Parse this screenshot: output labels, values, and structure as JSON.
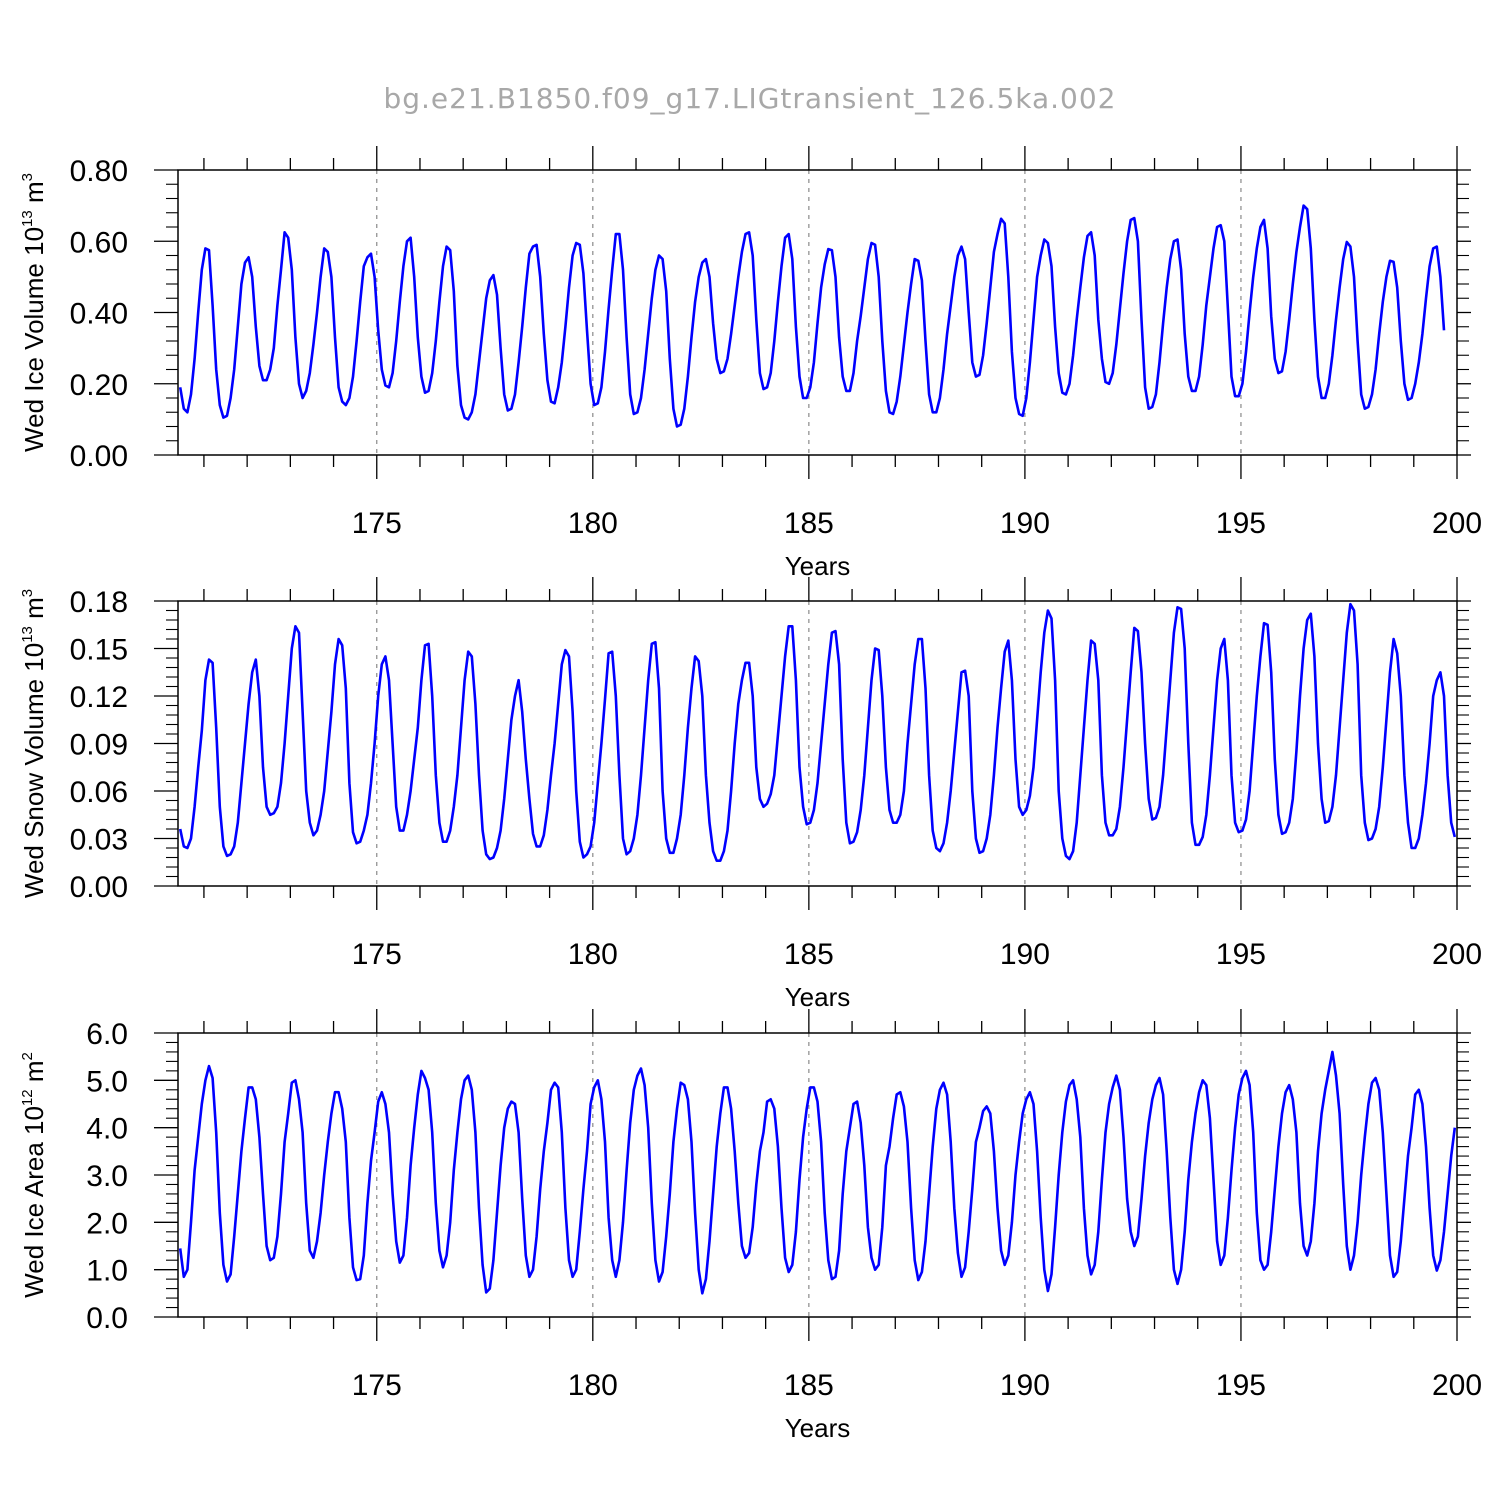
{
  "figure": {
    "title": "bg.e21.B1850.f09_g17.LIGtransient_126.5ka.002"
  },
  "chart_data": [
    {
      "type": "line",
      "name": "wed-ice-volume",
      "ylabel": {
        "main": "Wed Ice Volume 10",
        "exp": "13",
        "unit": " m",
        "unit_exp": "3"
      },
      "xlabel": "Years",
      "xlim": [
        170.4,
        200
      ],
      "ylim": [
        0,
        0.8
      ],
      "xticks": [
        175,
        180,
        185,
        190,
        195,
        200
      ],
      "xtick_labels": [
        "175",
        "180",
        "185",
        "190",
        "195",
        "200"
      ],
      "yticks": [
        0,
        0.2,
        0.4,
        0.6,
        0.8
      ],
      "ytick_labels": [
        "0.00",
        "0.20",
        "0.40",
        "0.60",
        "0.80"
      ],
      "x_start": 170.45,
      "x_step": 0.08333,
      "line_color": "#0000ff",
      "values": [
        0.19,
        0.13,
        0.12,
        0.17,
        0.27,
        0.4,
        0.52,
        0.58,
        0.575,
        0.42,
        0.24,
        0.14,
        0.105,
        0.11,
        0.16,
        0.24,
        0.36,
        0.48,
        0.54,
        0.555,
        0.5,
        0.36,
        0.25,
        0.21,
        0.21,
        0.24,
        0.3,
        0.42,
        0.52,
        0.625,
        0.61,
        0.52,
        0.33,
        0.2,
        0.16,
        0.18,
        0.23,
        0.31,
        0.4,
        0.5,
        0.58,
        0.57,
        0.5,
        0.33,
        0.19,
        0.15,
        0.14,
        0.16,
        0.22,
        0.32,
        0.43,
        0.53,
        0.555,
        0.565,
        0.5,
        0.35,
        0.24,
        0.195,
        0.19,
        0.23,
        0.32,
        0.43,
        0.53,
        0.6,
        0.61,
        0.5,
        0.33,
        0.22,
        0.175,
        0.18,
        0.23,
        0.32,
        0.43,
        0.53,
        0.585,
        0.575,
        0.46,
        0.25,
        0.14,
        0.105,
        0.1,
        0.12,
        0.17,
        0.26,
        0.35,
        0.44,
        0.49,
        0.505,
        0.45,
        0.3,
        0.17,
        0.125,
        0.13,
        0.17,
        0.26,
        0.36,
        0.47,
        0.565,
        0.585,
        0.59,
        0.5,
        0.34,
        0.21,
        0.15,
        0.145,
        0.19,
        0.26,
        0.36,
        0.47,
        0.56,
        0.595,
        0.59,
        0.51,
        0.35,
        0.2,
        0.14,
        0.145,
        0.19,
        0.29,
        0.41,
        0.52,
        0.62,
        0.62,
        0.52,
        0.33,
        0.17,
        0.115,
        0.12,
        0.16,
        0.24,
        0.34,
        0.44,
        0.52,
        0.56,
        0.55,
        0.46,
        0.27,
        0.13,
        0.08,
        0.085,
        0.13,
        0.22,
        0.33,
        0.43,
        0.5,
        0.54,
        0.55,
        0.5,
        0.37,
        0.27,
        0.23,
        0.235,
        0.27,
        0.34,
        0.42,
        0.5,
        0.57,
        0.62,
        0.625,
        0.56,
        0.38,
        0.23,
        0.185,
        0.19,
        0.23,
        0.32,
        0.43,
        0.53,
        0.61,
        0.62,
        0.55,
        0.36,
        0.22,
        0.16,
        0.16,
        0.19,
        0.26,
        0.37,
        0.47,
        0.535,
        0.578,
        0.575,
        0.5,
        0.33,
        0.22,
        0.18,
        0.18,
        0.23,
        0.32,
        0.39,
        0.47,
        0.55,
        0.595,
        0.59,
        0.5,
        0.32,
        0.18,
        0.12,
        0.115,
        0.15,
        0.22,
        0.31,
        0.4,
        0.48,
        0.55,
        0.545,
        0.49,
        0.32,
        0.17,
        0.12,
        0.12,
        0.16,
        0.24,
        0.34,
        0.42,
        0.5,
        0.56,
        0.585,
        0.55,
        0.4,
        0.26,
        0.22,
        0.225,
        0.28,
        0.37,
        0.47,
        0.57,
        0.62,
        0.663,
        0.65,
        0.5,
        0.29,
        0.16,
        0.115,
        0.11,
        0.16,
        0.26,
        0.38,
        0.5,
        0.56,
        0.605,
        0.595,
        0.53,
        0.36,
        0.23,
        0.175,
        0.17,
        0.2,
        0.28,
        0.38,
        0.47,
        0.555,
        0.615,
        0.625,
        0.56,
        0.38,
        0.27,
        0.205,
        0.2,
        0.23,
        0.31,
        0.41,
        0.51,
        0.6,
        0.66,
        0.665,
        0.6,
        0.38,
        0.19,
        0.13,
        0.135,
        0.17,
        0.26,
        0.37,
        0.47,
        0.55,
        0.6,
        0.605,
        0.52,
        0.34,
        0.22,
        0.18,
        0.18,
        0.22,
        0.31,
        0.42,
        0.5,
        0.58,
        0.64,
        0.645,
        0.6,
        0.41,
        0.22,
        0.165,
        0.165,
        0.2,
        0.29,
        0.4,
        0.5,
        0.58,
        0.64,
        0.66,
        0.58,
        0.39,
        0.27,
        0.23,
        0.235,
        0.29,
        0.38,
        0.48,
        0.57,
        0.64,
        0.7,
        0.69,
        0.58,
        0.38,
        0.22,
        0.16,
        0.16,
        0.2,
        0.28,
        0.38,
        0.47,
        0.55,
        0.598,
        0.585,
        0.5,
        0.32,
        0.17,
        0.13,
        0.135,
        0.17,
        0.24,
        0.34,
        0.43,
        0.5,
        0.545,
        0.542,
        0.47,
        0.32,
        0.2,
        0.155,
        0.16,
        0.2,
        0.26,
        0.34,
        0.44,
        0.53,
        0.58,
        0.585,
        0.5,
        0.35
      ]
    },
    {
      "type": "line",
      "name": "wed-snow-volume",
      "ylabel": {
        "main": "Wed Snow Volume 10",
        "exp": "13",
        "unit": " m",
        "unit_exp": "3"
      },
      "xlabel": "Years",
      "xlim": [
        170.4,
        200
      ],
      "ylim": [
        0,
        0.18
      ],
      "xticks": [
        175,
        180,
        185,
        190,
        195,
        200
      ],
      "xtick_labels": [
        "175",
        "180",
        "185",
        "190",
        "195",
        "200"
      ],
      "yticks": [
        0,
        0.03,
        0.06,
        0.09,
        0.12,
        0.15,
        0.18
      ],
      "ytick_labels": [
        "0.00",
        "0.03",
        "0.06",
        "0.09",
        "0.12",
        "0.15",
        "0.18"
      ],
      "x_start": 170.45,
      "x_step": 0.08333,
      "line_color": "#0000ff",
      "values": [
        0.036,
        0.025,
        0.024,
        0.03,
        0.05,
        0.075,
        0.098,
        0.13,
        0.143,
        0.141,
        0.1,
        0.05,
        0.025,
        0.019,
        0.02,
        0.025,
        0.04,
        0.065,
        0.09,
        0.115,
        0.135,
        0.143,
        0.12,
        0.075,
        0.05,
        0.045,
        0.046,
        0.05,
        0.065,
        0.09,
        0.12,
        0.15,
        0.164,
        0.16,
        0.11,
        0.06,
        0.04,
        0.032,
        0.035,
        0.045,
        0.06,
        0.085,
        0.11,
        0.14,
        0.156,
        0.152,
        0.125,
        0.065,
        0.034,
        0.027,
        0.028,
        0.035,
        0.045,
        0.065,
        0.09,
        0.12,
        0.14,
        0.145,
        0.13,
        0.09,
        0.05,
        0.035,
        0.035,
        0.045,
        0.06,
        0.08,
        0.1,
        0.13,
        0.152,
        0.153,
        0.12,
        0.07,
        0.04,
        0.028,
        0.028,
        0.035,
        0.05,
        0.07,
        0.1,
        0.13,
        0.148,
        0.145,
        0.115,
        0.07,
        0.035,
        0.02,
        0.017,
        0.018,
        0.024,
        0.035,
        0.055,
        0.08,
        0.105,
        0.12,
        0.13,
        0.11,
        0.08,
        0.055,
        0.033,
        0.025,
        0.025,
        0.032,
        0.048,
        0.07,
        0.09,
        0.115,
        0.14,
        0.149,
        0.145,
        0.11,
        0.06,
        0.028,
        0.018,
        0.02,
        0.025,
        0.04,
        0.065,
        0.09,
        0.118,
        0.147,
        0.148,
        0.12,
        0.07,
        0.03,
        0.02,
        0.022,
        0.03,
        0.045,
        0.07,
        0.1,
        0.13,
        0.153,
        0.154,
        0.125,
        0.06,
        0.03,
        0.021,
        0.021,
        0.03,
        0.045,
        0.07,
        0.1,
        0.125,
        0.145,
        0.142,
        0.12,
        0.07,
        0.04,
        0.022,
        0.016,
        0.016,
        0.022,
        0.035,
        0.06,
        0.09,
        0.115,
        0.13,
        0.141,
        0.141,
        0.12,
        0.075,
        0.055,
        0.05,
        0.052,
        0.058,
        0.07,
        0.095,
        0.12,
        0.145,
        0.164,
        0.164,
        0.13,
        0.075,
        0.05,
        0.039,
        0.04,
        0.048,
        0.065,
        0.09,
        0.115,
        0.14,
        0.16,
        0.161,
        0.14,
        0.08,
        0.04,
        0.027,
        0.028,
        0.034,
        0.048,
        0.07,
        0.1,
        0.13,
        0.15,
        0.149,
        0.12,
        0.075,
        0.048,
        0.04,
        0.04,
        0.045,
        0.06,
        0.09,
        0.115,
        0.14,
        0.156,
        0.156,
        0.125,
        0.07,
        0.035,
        0.024,
        0.022,
        0.027,
        0.04,
        0.06,
        0.085,
        0.11,
        0.135,
        0.136,
        0.12,
        0.06,
        0.03,
        0.021,
        0.022,
        0.03,
        0.045,
        0.07,
        0.1,
        0.125,
        0.148,
        0.155,
        0.13,
        0.08,
        0.05,
        0.045,
        0.048,
        0.057,
        0.075,
        0.105,
        0.135,
        0.16,
        0.174,
        0.169,
        0.13,
        0.06,
        0.03,
        0.019,
        0.017,
        0.022,
        0.04,
        0.07,
        0.1,
        0.13,
        0.155,
        0.153,
        0.13,
        0.07,
        0.04,
        0.032,
        0.032,
        0.036,
        0.05,
        0.075,
        0.105,
        0.135,
        0.163,
        0.161,
        0.135,
        0.09,
        0.055,
        0.042,
        0.043,
        0.05,
        0.07,
        0.1,
        0.13,
        0.16,
        0.176,
        0.175,
        0.15,
        0.09,
        0.04,
        0.026,
        0.026,
        0.031,
        0.045,
        0.07,
        0.1,
        0.13,
        0.15,
        0.156,
        0.13,
        0.07,
        0.04,
        0.034,
        0.035,
        0.042,
        0.06,
        0.09,
        0.12,
        0.145,
        0.166,
        0.165,
        0.135,
        0.08,
        0.045,
        0.033,
        0.034,
        0.04,
        0.055,
        0.085,
        0.12,
        0.15,
        0.168,
        0.172,
        0.145,
        0.09,
        0.055,
        0.04,
        0.041,
        0.05,
        0.07,
        0.1,
        0.13,
        0.16,
        0.178,
        0.174,
        0.14,
        0.07,
        0.04,
        0.029,
        0.03,
        0.036,
        0.05,
        0.075,
        0.105,
        0.135,
        0.156,
        0.147,
        0.12,
        0.07,
        0.04,
        0.024,
        0.024,
        0.03,
        0.045,
        0.065,
        0.09,
        0.12,
        0.13,
        0.135,
        0.12,
        0.07,
        0.04,
        0.031,
        0.032,
        0.04,
        0.055,
        0.08,
        0.105,
        0.13,
        0.15,
        0.153,
        0.13,
        0.07
      ]
    },
    {
      "type": "line",
      "name": "wed-ice-area",
      "ylabel": {
        "main": "Wed Ice Area 10",
        "exp": "12",
        "unit": " m",
        "unit_exp": "2"
      },
      "xlabel": "Years",
      "xlim": [
        170.4,
        200
      ],
      "ylim": [
        0,
        6
      ],
      "xticks": [
        175,
        180,
        185,
        190,
        195,
        200
      ],
      "xtick_labels": [
        "175",
        "180",
        "185",
        "190",
        "195",
        "200"
      ],
      "yticks": [
        0,
        1,
        2,
        3,
        4,
        5,
        6
      ],
      "ytick_labels": [
        "0.0",
        "1.0",
        "2.0",
        "3.0",
        "4.0",
        "5.0",
        "6.0"
      ],
      "x_start": 170.45,
      "x_step": 0.08333,
      "line_color": "#0000ff",
      "values": [
        1.45,
        0.85,
        1.0,
        2.0,
        3.1,
        3.8,
        4.5,
        5.0,
        5.3,
        5.05,
        3.9,
        2.2,
        1.1,
        0.75,
        0.9,
        1.7,
        2.6,
        3.5,
        4.2,
        4.85,
        4.85,
        4.6,
        3.8,
        2.6,
        1.5,
        1.2,
        1.25,
        1.7,
        2.6,
        3.7,
        4.3,
        4.95,
        5.0,
        4.6,
        3.9,
        2.4,
        1.4,
        1.25,
        1.6,
        2.2,
        3.0,
        3.7,
        4.3,
        4.75,
        4.75,
        4.4,
        3.7,
        2.1,
        1.05,
        0.78,
        0.8,
        1.3,
        2.4,
        3.3,
        3.9,
        4.55,
        4.75,
        4.5,
        3.9,
        2.6,
        1.6,
        1.15,
        1.3,
        2.1,
        3.2,
        4.0,
        4.7,
        5.2,
        5.05,
        4.8,
        3.9,
        2.4,
        1.4,
        1.05,
        1.3,
        2.0,
        3.1,
        3.9,
        4.6,
        5.0,
        5.1,
        4.8,
        3.9,
        2.3,
        1.1,
        0.52,
        0.6,
        1.2,
        2.2,
        3.2,
        4.0,
        4.4,
        4.55,
        4.5,
        3.9,
        2.5,
        1.3,
        0.85,
        1.0,
        1.7,
        2.7,
        3.5,
        4.1,
        4.8,
        4.95,
        4.85,
        3.9,
        2.3,
        1.2,
        0.85,
        1.0,
        1.8,
        2.7,
        3.5,
        4.5,
        4.85,
        5.0,
        4.6,
        3.7,
        2.1,
        1.2,
        0.85,
        1.2,
        2.0,
        3.1,
        4.1,
        4.8,
        5.1,
        5.25,
        4.9,
        4.0,
        2.4,
        1.2,
        0.75,
        0.95,
        1.7,
        2.6,
        3.7,
        4.4,
        4.95,
        4.9,
        4.6,
        3.7,
        2.2,
        1.0,
        0.5,
        0.8,
        1.6,
        2.6,
        3.6,
        4.3,
        4.85,
        4.85,
        4.4,
        3.5,
        2.4,
        1.5,
        1.25,
        1.35,
        1.9,
        2.8,
        3.5,
        3.9,
        4.55,
        4.6,
        4.4,
        3.6,
        2.3,
        1.25,
        0.95,
        1.1,
        1.8,
        2.9,
        3.8,
        4.4,
        4.85,
        4.85,
        4.55,
        3.7,
        2.2,
        1.2,
        0.8,
        0.85,
        1.4,
        2.6,
        3.5,
        4.0,
        4.5,
        4.55,
        4.1,
        3.2,
        1.9,
        1.25,
        1.0,
        1.1,
        1.9,
        3.2,
        3.6,
        4.2,
        4.7,
        4.75,
        4.45,
        3.7,
        2.3,
        1.2,
        0.78,
        0.95,
        1.6,
        2.6,
        3.6,
        4.4,
        4.8,
        4.95,
        4.7,
        3.7,
        2.3,
        1.35,
        0.85,
        1.05,
        1.8,
        2.7,
        3.7,
        4.0,
        4.35,
        4.45,
        4.3,
        3.5,
        2.3,
        1.4,
        1.1,
        1.3,
        2.0,
        3.0,
        3.7,
        4.3,
        4.6,
        4.75,
        4.5,
        3.5,
        2.1,
        1.0,
        0.55,
        0.9,
        1.9,
        3.0,
        3.9,
        4.55,
        4.9,
        5.0,
        4.6,
        3.8,
        2.3,
        1.3,
        0.9,
        1.1,
        1.8,
        2.9,
        3.9,
        4.5,
        4.85,
        5.1,
        4.8,
        3.8,
        2.5,
        1.8,
        1.5,
        1.7,
        2.5,
        3.4,
        4.1,
        4.6,
        4.9,
        5.05,
        4.7,
        3.5,
        2.1,
        1.0,
        0.7,
        1.0,
        1.8,
        2.9,
        3.7,
        4.3,
        4.75,
        5.0,
        4.9,
        4.2,
        2.9,
        1.6,
        1.1,
        1.3,
        2.1,
        3.1,
        4.0,
        4.7,
        5.05,
        5.2,
        4.9,
        3.9,
        2.2,
        1.2,
        1.0,
        1.1,
        1.8,
        2.7,
        3.6,
        4.3,
        4.75,
        4.9,
        4.6,
        3.9,
        2.4,
        1.5,
        1.3,
        1.6,
        2.4,
        3.5,
        4.3,
        4.8,
        5.2,
        5.6,
        5.1,
        4.3,
        2.8,
        1.5,
        1.0,
        1.3,
        2.0,
        3.0,
        3.8,
        4.5,
        4.95,
        5.05,
        4.8,
        3.9,
        2.6,
        1.3,
        0.85,
        0.95,
        1.6,
        2.5,
        3.4,
        4.0,
        4.7,
        4.8,
        4.5,
        3.6,
        2.3,
        1.3,
        0.98,
        1.2,
        1.8,
        2.6,
        3.4,
        4.0,
        4.35,
        4.4,
        4.05,
        3.4,
        2.2
      ]
    }
  ]
}
